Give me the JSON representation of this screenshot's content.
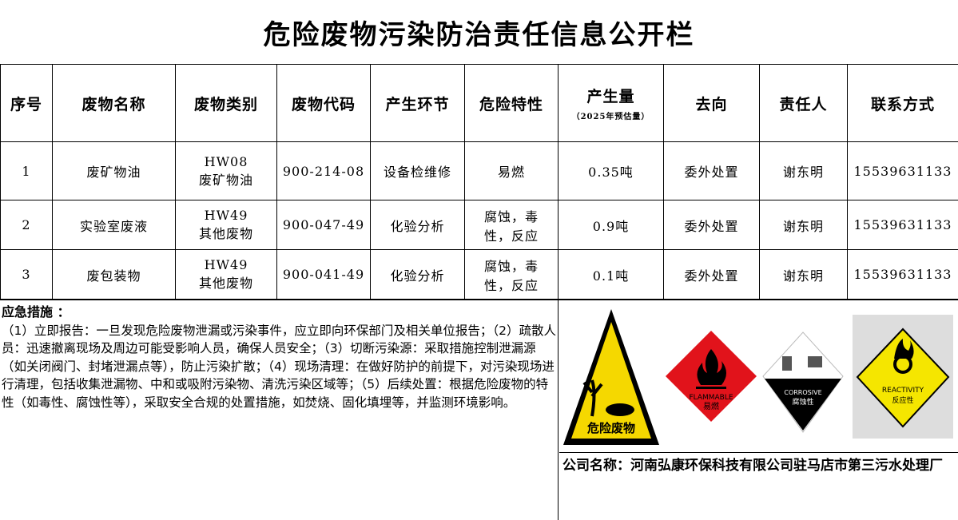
{
  "title": "危险废物污染防治责任信息公开栏",
  "headers": {
    "no": "序号",
    "name": "废物名称",
    "category": "废物类别",
    "code": "废物代码",
    "process": "产生环节",
    "hazard": "危险特性",
    "amount": "产生量",
    "amount_note": "（2025年预估量）",
    "destination": "去向",
    "person": "责任人",
    "contact": "联系方式"
  },
  "rows": [
    {
      "no": "1",
      "name": "废矿物油",
      "cat_code": "HW08",
      "cat_name": "废矿物油",
      "code": "900-214-08",
      "process": "设备检维修",
      "hazard": "易燃",
      "amount": "0.35吨",
      "destination": "委外处置",
      "person": "谢东明",
      "contact": "15539631133"
    },
    {
      "no": "2",
      "name": "实验室废液",
      "cat_code": "HW49",
      "cat_name": "其他废物",
      "code": "900-047-49",
      "process": "化验分析",
      "hazard": "腐蚀，毒性，反应",
      "amount": "0.9吨",
      "destination": "委外处置",
      "person": "谢东明",
      "contact": "15539631133"
    },
    {
      "no": "3",
      "name": "废包装物",
      "cat_code": "HW49",
      "cat_name": "其他废物",
      "code": "900-041-49",
      "process": "化验分析",
      "hazard": "腐蚀，毒性，反应",
      "amount": "0.1吨",
      "destination": "委外处置",
      "person": "谢东明",
      "contact": "15539631133"
    }
  ],
  "measures": {
    "heading": "应急措施 ：",
    "text": "（1）立即报告：一旦发现危险废物泄漏或污染事件，应立即向环保部门及相关单位报告；（2）疏散人员：迅速撤离现场及周边可能受影响人员，确保人员安全；（3）切断污染源：采取措施控制泄漏源（如关闭阀门、封堵泄漏点等），防止污染扩散；（4）现场清理：在做好防护的前提下，对污染现场进行清理，包括收集泄漏物、中和或吸附污染物、清洗污染区域等；（5）后续处置：根据危险废物的特性（如毒性、腐蚀性等），采取安全合规的处置措施，如焚烧、固化填埋等，并监测环境影响。"
  },
  "signs": {
    "hazardous_waste": "危险废物",
    "flammable_en": "FLAMMABLE",
    "flammable_cn": "易燃",
    "corrosive_en": "CORROSIVE",
    "corrosive_cn": "腐蚀性",
    "reactivity_en": "REACTIVITY",
    "reactivity_cn": "反应性"
  },
  "company": "公司名称：河南弘康环保科技有限公司驻马店市第三污水处理厂"
}
